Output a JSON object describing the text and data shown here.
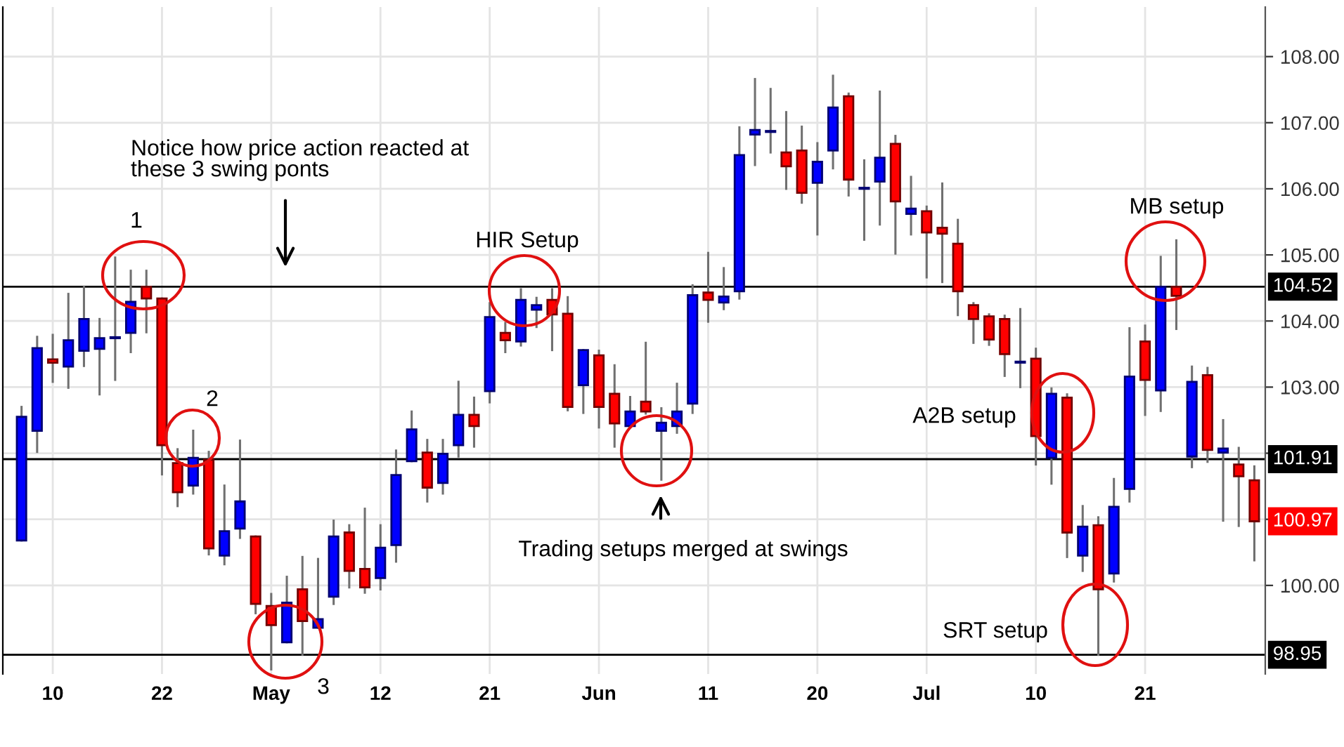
{
  "chart_data": {
    "type": "candlestick",
    "categories": [
      null,
      null,
      "10",
      null,
      null,
      null,
      null,
      null,
      null,
      "22",
      null,
      null,
      null,
      null,
      null,
      null,
      "May",
      null,
      null,
      null,
      null,
      null,
      null,
      "12",
      null,
      null,
      null,
      null,
      null,
      null,
      "21",
      null,
      null,
      null,
      null,
      null,
      null,
      "Jun",
      null,
      null,
      null,
      null,
      null,
      null,
      "11",
      null,
      null,
      null,
      null,
      null,
      null,
      "20",
      null,
      null,
      null,
      null,
      null,
      null,
      "Jul",
      null,
      null,
      null,
      null,
      null,
      null,
      "10",
      null,
      null,
      null,
      null,
      null,
      null,
      "21",
      null,
      null,
      null,
      null,
      null,
      null,
      null
    ],
    "ohlc": [
      [
        100.68,
        102.7,
        100.68,
        102.55
      ],
      [
        102.34,
        103.76,
        102.02,
        103.59
      ],
      [
        103.42,
        103.79,
        103.08,
        103.37
      ],
      [
        103.31,
        104.41,
        102.99,
        103.71
      ],
      [
        103.55,
        104.52,
        103.32,
        104.03
      ],
      [
        103.58,
        104.03,
        102.89,
        103.74
      ],
      [
        103.74,
        104.96,
        103.11,
        103.74
      ],
      [
        103.82,
        104.76,
        103.53,
        104.29
      ],
      [
        104.52,
        104.76,
        103.83,
        104.34
      ],
      [
        104.34,
        104.34,
        101.68,
        102.12
      ],
      [
        101.85,
        102.06,
        101.2,
        101.41
      ],
      [
        101.51,
        102.34,
        101.39,
        101.93
      ],
      [
        101.9,
        102.02,
        100.47,
        100.56
      ],
      [
        100.45,
        101.51,
        100.32,
        100.82
      ],
      [
        100.86,
        102.19,
        100.72,
        101.27
      ],
      [
        100.74,
        100.74,
        99.58,
        99.72
      ],
      [
        99.69,
        99.87,
        98.73,
        99.4
      ],
      [
        99.14,
        100.13,
        99.14,
        99.74
      ],
      [
        99.94,
        100.43,
        98.95,
        99.46
      ],
      [
        99.36,
        100.4,
        99.36,
        99.49
      ],
      [
        99.83,
        100.98,
        99.72,
        100.74
      ],
      [
        100.8,
        100.91,
        99.97,
        100.22
      ],
      [
        100.25,
        101.16,
        99.89,
        99.97
      ],
      [
        100.11,
        100.91,
        99.94,
        100.57
      ],
      [
        100.61,
        102.04,
        100.36,
        101.67
      ],
      [
        101.88,
        102.63,
        101.88,
        102.36
      ],
      [
        102.01,
        102.2,
        101.27,
        101.48
      ],
      [
        101.55,
        102.2,
        101.39,
        101.99
      ],
      [
        102.12,
        103.08,
        101.95,
        102.58
      ],
      [
        102.58,
        102.84,
        102.1,
        102.41
      ],
      [
        102.94,
        104.27,
        102.77,
        104.06
      ],
      [
        103.82,
        103.97,
        103.53,
        103.71
      ],
      [
        103.69,
        104.48,
        103.63,
        104.32
      ],
      [
        104.17,
        104.35,
        103.91,
        104.24
      ],
      [
        104.32,
        104.48,
        103.56,
        104.1
      ],
      [
        104.11,
        104.36,
        102.65,
        102.7
      ],
      [
        103.03,
        103.56,
        102.61,
        103.56
      ],
      [
        103.48,
        103.55,
        102.39,
        102.7
      ],
      [
        102.9,
        103.33,
        102.1,
        102.45
      ],
      [
        102.41,
        102.85,
        102.41,
        102.63
      ],
      [
        102.78,
        103.67,
        102.6,
        102.63
      ],
      [
        102.34,
        102.68,
        101.6,
        102.46
      ],
      [
        102.41,
        103.05,
        102.31,
        102.63
      ],
      [
        102.75,
        104.54,
        102.61,
        104.39
      ],
      [
        104.43,
        105.03,
        103.99,
        104.32
      ],
      [
        104.28,
        104.8,
        104.18,
        104.37
      ],
      [
        104.45,
        106.93,
        104.34,
        106.51
      ],
      [
        106.82,
        107.66,
        106.36,
        106.89
      ],
      [
        106.86,
        107.51,
        106.55,
        106.86
      ],
      [
        106.55,
        107.16,
        106.0,
        106.34
      ],
      [
        106.58,
        106.94,
        105.79,
        105.94
      ],
      [
        106.09,
        106.69,
        105.31,
        106.41
      ],
      [
        106.58,
        107.71,
        106.31,
        107.23
      ],
      [
        107.4,
        107.44,
        105.9,
        106.14
      ],
      [
        106.0,
        106.43,
        105.23,
        106.0
      ],
      [
        106.11,
        107.47,
        105.46,
        106.47
      ],
      [
        106.68,
        106.8,
        105.02,
        105.81
      ],
      [
        105.62,
        106.18,
        105.31,
        105.7
      ],
      [
        105.66,
        105.73,
        104.66,
        105.34
      ],
      [
        105.41,
        106.08,
        104.59,
        105.32
      ],
      [
        105.17,
        105.53,
        104.09,
        104.45
      ],
      [
        104.24,
        104.27,
        103.67,
        104.03
      ],
      [
        104.07,
        104.1,
        103.64,
        103.72
      ],
      [
        104.03,
        104.08,
        103.17,
        103.5
      ],
      [
        103.37,
        104.18,
        103.0,
        103.37
      ],
      [
        103.43,
        103.58,
        101.83,
        102.26
      ],
      [
        101.93,
        102.98,
        101.54,
        102.9
      ],
      [
        102.84,
        102.89,
        100.43,
        100.8
      ],
      [
        100.45,
        101.2,
        100.22,
        100.89
      ],
      [
        100.91,
        101.03,
        98.95,
        99.94
      ],
      [
        100.18,
        101.61,
        100.06,
        101.19
      ],
      [
        101.46,
        103.89,
        101.27,
        103.16
      ],
      [
        103.69,
        103.93,
        102.58,
        103.11
      ],
      [
        102.95,
        104.97,
        102.64,
        104.52
      ],
      [
        104.52,
        105.22,
        103.88,
        104.38
      ],
      [
        101.95,
        103.31,
        101.79,
        103.08
      ],
      [
        103.18,
        103.29,
        101.87,
        102.05
      ],
      [
        102.01,
        102.5,
        100.98,
        102.07
      ],
      [
        101.83,
        102.08,
        100.9,
        101.65
      ],
      [
        101.59,
        101.8,
        100.38,
        100.97
      ]
    ],
    "colors": [
      "#0000ff",
      "#0000ff",
      "#ff0000",
      "#0000ff",
      "#0000ff",
      "#0000ff",
      "#0000ff",
      "#0000ff",
      "#ff0000",
      "#ff0000",
      "#ff0000",
      "#0000ff",
      "#ff0000",
      "#0000ff",
      "#0000ff",
      "#ff0000",
      "#ff0000",
      "#0000ff",
      "#ff0000",
      "#0000ff",
      "#0000ff",
      "#ff0000",
      "#ff0000",
      "#0000ff",
      "#0000ff",
      "#0000ff",
      "#ff0000",
      "#0000ff",
      "#0000ff",
      "#ff0000",
      "#0000ff",
      "#ff0000",
      "#0000ff",
      "#0000ff",
      "#ff0000",
      "#ff0000",
      "#0000ff",
      "#ff0000",
      "#ff0000",
      "#0000ff",
      "#ff0000",
      "#0000ff",
      "#0000ff",
      "#0000ff",
      "#ff0000",
      "#0000ff",
      "#0000ff",
      "#0000ff",
      "#0000ff",
      "#ff0000",
      "#ff0000",
      "#0000ff",
      "#0000ff",
      "#ff0000",
      "#0000ff",
      "#0000ff",
      "#ff0000",
      "#0000ff",
      "#ff0000",
      "#ff0000",
      "#ff0000",
      "#ff0000",
      "#ff0000",
      "#ff0000",
      "#0000ff",
      "#ff0000",
      "#0000ff",
      "#ff0000",
      "#0000ff",
      "#ff0000",
      "#0000ff",
      "#0000ff",
      "#ff0000",
      "#0000ff",
      "#ff0000",
      "#0000ff",
      "#ff0000",
      "#0000ff",
      "#ff0000",
      "#ff0000"
    ],
    "ylim": [
      98.66,
      108.75
    ],
    "yticks": [
      {
        "value": 100,
        "label": "100.00"
      },
      {
        "value": 101,
        "label": null
      },
      {
        "value": 102,
        "label": null
      },
      {
        "value": 103,
        "label": "103.00"
      },
      {
        "value": 104,
        "label": "104.00"
      },
      {
        "value": 105,
        "label": "105.00"
      },
      {
        "value": 106,
        "label": "106.00"
      },
      {
        "value": 107,
        "label": "107.00"
      },
      {
        "value": 108,
        "label": "108.00"
      }
    ],
    "grid": true,
    "ref_lines": [
      {
        "axis": "y",
        "value": 104.52,
        "label": "104.52",
        "color": "#000000"
      },
      {
        "axis": "y",
        "value": 101.91,
        "label": "101.91",
        "color": "#000000"
      },
      {
        "axis": "y",
        "value": 98.95,
        "label": "98.95",
        "color": "#000000"
      }
    ],
    "annotations": [
      "1",
      "2",
      "3",
      "Notice how price action reacted at\nthese 3 swing ponts",
      "HIR Setup",
      "Trading setups merged at swings",
      "A2B setup",
      "MB setup",
      "SRT setup",
      "100.97"
    ]
  }
}
